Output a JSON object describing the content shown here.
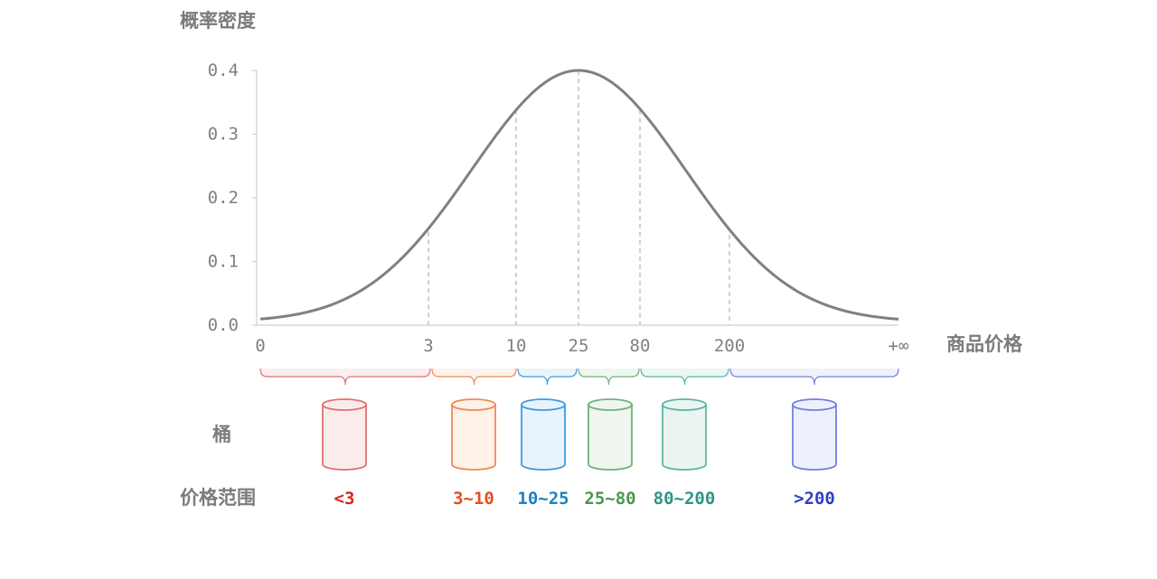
{
  "y_axis_label": "概率密度",
  "x_axis_label": "商品价格",
  "bucket_row_label": "桶",
  "range_row_label": "价格范围",
  "chart_data": {
    "type": "line",
    "title": "",
    "xlabel": "商品价格",
    "ylabel": "概率密度",
    "ylim": [
      0,
      0.4
    ],
    "y_ticks": [
      "0.0",
      "0.1",
      "0.2",
      "0.3",
      "0.4"
    ],
    "x_ticks": [
      "0",
      "3",
      "10",
      "25",
      "80",
      "200",
      "+∞"
    ],
    "curve": "bell-shaped probability density peaking at price 25",
    "series": [
      {
        "x": [
          "0",
          "3",
          "10",
          "25",
          "80",
          "200",
          "+∞"
        ],
        "y": [
          0.005,
          0.147,
          0.338,
          0.4,
          0.338,
          0.142,
          0.005
        ]
      }
    ],
    "dashed_markers_at": [
      "3",
      "10",
      "25",
      "80",
      "200"
    ]
  },
  "buckets": [
    {
      "range": "<3",
      "color": "#d9261c",
      "stroke": "#e36f6f",
      "fill": "#fbecec"
    },
    {
      "range": "3~10",
      "color": "#e0501c",
      "stroke": "#ee8a53",
      "fill": "#fdf1ea"
    },
    {
      "range": "10~25",
      "color": "#1e7fc0",
      "stroke": "#3d9be0",
      "fill": "#e8f3fb"
    },
    {
      "range": "25~80",
      "color": "#4a9650",
      "stroke": "#73b077",
      "fill": "#eef6ee"
    },
    {
      "range": "80~200",
      "color": "#2f9384",
      "stroke": "#5db4a4",
      "fill": "#eaf5f2"
    },
    {
      "range": ">200",
      "color": "#2f3ec1",
      "stroke": "#6f82df",
      "fill": "#eef0fb"
    }
  ]
}
